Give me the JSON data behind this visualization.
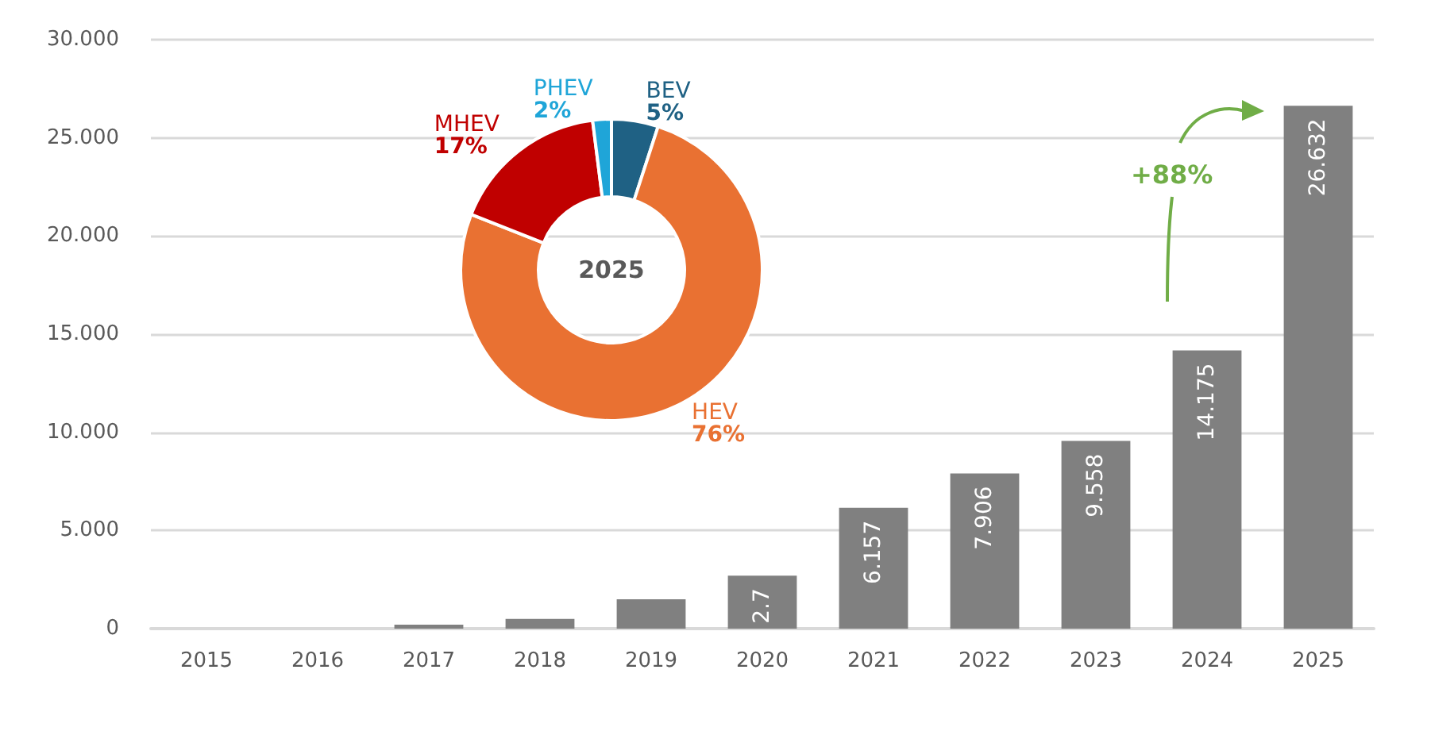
{
  "chart_data": [
    {
      "type": "bar",
      "categories": [
        "2015",
        "2016",
        "2017",
        "2018",
        "2019",
        "2020",
        "2021",
        "2022",
        "2023",
        "2024",
        "2025"
      ],
      "series": [
        {
          "color": "#808080",
          "values": [
            0,
            0,
            0.2,
            0.5,
            1.5,
            2.7,
            6.157,
            7.906,
            9.558,
            14.175,
            26.632
          ],
          "value_labels": [
            null,
            null,
            null,
            null,
            null,
            "2.7",
            "6.157",
            "7.906",
            "9.558",
            "14.175",
            "26.632"
          ]
        }
      ],
      "ylim": [
        0,
        30
      ],
      "yticks": [
        0,
        {
          "value": 5,
          "label": "5.000"
        },
        {
          "value": 10,
          "label": "10.000"
        },
        {
          "value": 15,
          "label": "15.000"
        },
        {
          "value": 20,
          "label": "20.000"
        },
        {
          "value": 25,
          "label": "25.000"
        },
        {
          "value": 30,
          "label": "30.000"
        }
      ],
      "grid": "y",
      "annotations": [
        "+88%"
      ]
    },
    {
      "type": "donut",
      "title": "2025",
      "categories": [
        "BEV",
        "HEV",
        "MHEV",
        "PHEV"
      ],
      "values": [
        5,
        76,
        17,
        2
      ],
      "colors": [
        "#1f6184",
        "#e97132",
        "#c00000",
        "#1fa5d8"
      ],
      "value_labels": [
        "5%",
        "76%",
        "17%",
        "2%"
      ]
    }
  ]
}
